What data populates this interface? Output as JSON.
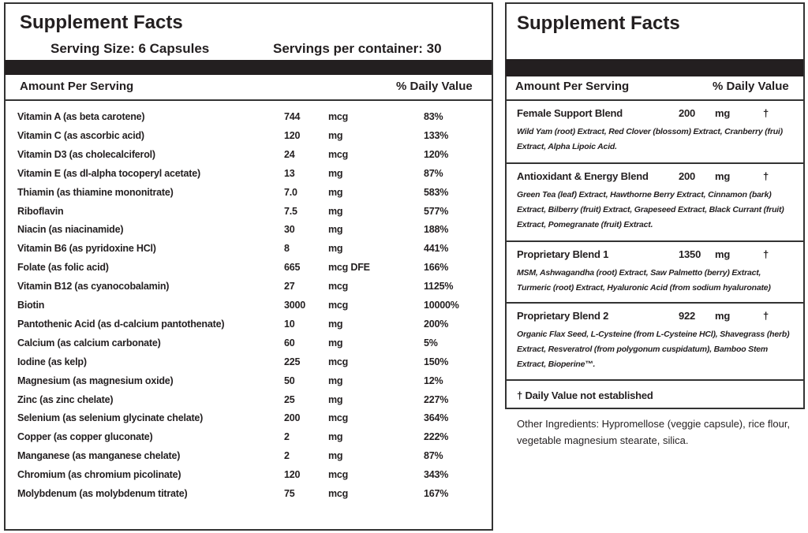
{
  "left": {
    "title": "Supplement Facts",
    "serving_size": "Serving Size: 6 Capsules",
    "servings_per_container": "Servings per container: 30",
    "amount_header": "Amount Per Serving",
    "dv_header": "% Daily Value",
    "rows": [
      [
        "Vitamin A (as beta carotene)",
        "744",
        "mcg",
        "83%"
      ],
      [
        "Vitamin C (as ascorbic acid)",
        "120",
        "mg",
        "133%"
      ],
      [
        "Vitamin D3 (as cholecalciferol)",
        "24",
        "mcg",
        "120%"
      ],
      [
        "Vitamin E (as dl-alpha tocoperyl acetate)",
        "13",
        "mg",
        "87%"
      ],
      [
        "Thiamin (as thiamine mononitrate)",
        "7.0",
        "mg",
        "583%"
      ],
      [
        "Riboflavin",
        "7.5",
        "mg",
        "577%"
      ],
      [
        "Niacin (as niacinamide)",
        "30",
        "mg",
        "188%"
      ],
      [
        "Vitamin B6 (as pyridoxine HCl)",
        "8",
        "mg",
        "441%"
      ],
      [
        "Folate (as folic acid)",
        "665",
        "mcg DFE",
        "166%"
      ],
      [
        "Vitamin B12 (as cyanocobalamin)",
        "27",
        "mcg",
        "1125%"
      ],
      [
        "Biotin",
        "3000",
        "mcg",
        "10000%"
      ],
      [
        "Pantothenic Acid (as d-calcium pantothenate)",
        "10",
        "mg",
        "200%"
      ],
      [
        "Calcium (as calcium carbonate)",
        "60",
        "mg",
        "5%"
      ],
      [
        "Iodine (as kelp)",
        "225",
        "mcg",
        "150%"
      ],
      [
        "Magnesium (as magnesium oxide)",
        "50",
        "mg",
        "12%"
      ],
      [
        "Zinc (as zinc chelate)",
        "25",
        "mg",
        "227%"
      ],
      [
        "Selenium (as selenium glycinate chelate)",
        "200",
        "mcg",
        "364%"
      ],
      [
        "Copper (as copper gluconate)",
        "2",
        "mg",
        "222%"
      ],
      [
        "Manganese (as manganese chelate)",
        "2",
        "mg",
        "87%"
      ],
      [
        "Chromium (as chromium picolinate)",
        "120",
        "mcg",
        "343%"
      ],
      [
        "Molybdenum (as molybdenum titrate)",
        "75",
        "mcg",
        "167%"
      ]
    ]
  },
  "right": {
    "title": "Supplement Facts",
    "amount_header": "Amount Per Serving",
    "dv_header": "% Daily Value",
    "blends": [
      {
        "name": "Female Support Blend",
        "amount": "200",
        "unit": "mg",
        "dv": "†",
        "ingredients": "Wild Yam (root) Extract, Red Clover (blossom) Extract, Cranberry (frui) Extract, Alpha Lipoic Acid."
      },
      {
        "name": "Antioxidant & Energy Blend",
        "amount": "200",
        "unit": "mg",
        "dv": "†",
        "ingredients": "Green Tea (leaf) Extract, Hawthorne Berry Extract, Cinnamon (bark) Extract, Bilberry (fruit) Extract, Grapeseed Extract, Black Currant (fruit) Extract, Pomegranate (fruit) Extract."
      },
      {
        "name": "Proprietary Blend 1",
        "amount": "1350",
        "unit": "mg",
        "dv": "†",
        "ingredients": "MSM, Ashwagandha (root) Extract, Saw Palmetto (berry) Extract, Turmeric (root) Extract, Hyaluronic Acid (from sodium hyaluronate)"
      },
      {
        "name": "Proprietary Blend 2",
        "amount": "922",
        "unit": "mg",
        "dv": "†",
        "ingredients": "Organic Flax Seed, L-Cysteine (from L-Cysteine HCl), Shavegrass (herb) Extract, Resveratrol (from polygonum cuspidatum), Bamboo Stem Extract, Bioperine™."
      }
    ],
    "footnote": "† Daily Value not established",
    "other_ingredients": "Other Ingredients: Hypromellose (veggie capsule), rice flour, vegetable magnesium stearate, silica."
  }
}
